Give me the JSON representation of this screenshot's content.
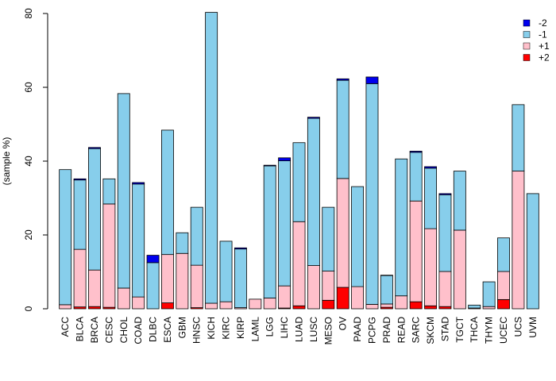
{
  "chart_data": {
    "type": "bar",
    "stacked": true,
    "title": "",
    "xlabel": "",
    "ylabel": "(sample %)",
    "ylim": [
      0,
      80
    ],
    "yticks": [
      0,
      20,
      40,
      60,
      80
    ],
    "legend_position": "top-right",
    "categories": [
      "ACC",
      "BLCA",
      "BRCA",
      "CESC",
      "CHOL",
      "COAD",
      "DLBC",
      "ESCA",
      "GBM",
      "HNSC",
      "KICH",
      "KIRC",
      "KIRP",
      "LAML",
      "LGG",
      "LIHC",
      "LUAD",
      "LUSC",
      "MESO",
      "OV",
      "PAAD",
      "PCPG",
      "PRAD",
      "READ",
      "SARC",
      "SKCM",
      "STAD",
      "TGCT",
      "THCA",
      "THYM",
      "UCEC",
      "UCS",
      "UVM"
    ],
    "series": [
      {
        "name": "+2",
        "color": "#ff0000",
        "values": [
          0,
          0.5,
          0.6,
          0.4,
          0,
          0,
          0,
          1.6,
          0,
          0.3,
          0,
          0,
          0,
          0,
          0,
          0.2,
          0.8,
          0,
          2.3,
          5.8,
          0,
          0,
          0.4,
          0,
          1.9,
          0.8,
          0.6,
          0,
          0,
          0,
          2.5,
          0,
          0
        ]
      },
      {
        "name": "+1",
        "color": "#ffc0cb",
        "values": [
          1.1,
          15.6,
          9.9,
          28.0,
          5.6,
          3.2,
          0,
          13.1,
          15.0,
          11.5,
          1.5,
          1.9,
          0.3,
          2.6,
          2.9,
          6.0,
          22.8,
          11.7,
          7.9,
          29.5,
          6.0,
          1.2,
          0.9,
          3.5,
          27.3,
          20.9,
          9.5,
          21.3,
          0.2,
          0.6,
          7.6,
          37.3,
          0
        ]
      },
      {
        "name": "-1",
        "color": "#87ceeb",
        "values": [
          36.6,
          18.8,
          32.9,
          6.8,
          52.7,
          30.6,
          12.5,
          33.7,
          5.6,
          15.7,
          78.8,
          16.4,
          15.9,
          0,
          35.8,
          33.9,
          21.4,
          39.9,
          17.3,
          26.6,
          27.1,
          59.8,
          7.7,
          37.1,
          13.2,
          16.4,
          20.8,
          16.0,
          0.8,
          6.7,
          9.1,
          18.0,
          31.2
        ]
      },
      {
        "name": "-2",
        "color": "#0000ee",
        "values": [
          0,
          0.3,
          0.3,
          0,
          0,
          0.4,
          2.0,
          0,
          0,
          0,
          0,
          0,
          0.3,
          0,
          0.2,
          0.8,
          0,
          0.3,
          0,
          0.4,
          0,
          1.8,
          0.1,
          0,
          0.3,
          0.4,
          0.3,
          0,
          0,
          0,
          0,
          0,
          0
        ]
      }
    ]
  }
}
